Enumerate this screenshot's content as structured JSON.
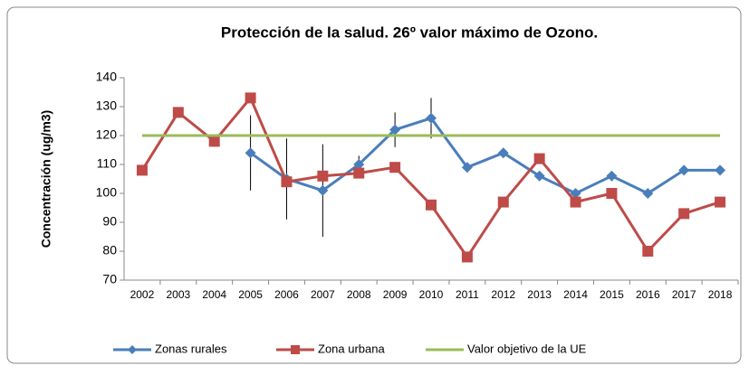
{
  "chart_data": {
    "type": "line",
    "title": "Protección de la salud. 26º valor máximo de Ozono.",
    "y_label": "Concentración (ug/m3)",
    "categories": [
      "2002",
      "2003",
      "2004",
      "2005",
      "2006",
      "2007",
      "2008",
      "2009",
      "2010",
      "2011",
      "2012",
      "2013",
      "2014",
      "2015",
      "2016",
      "2017",
      "2018"
    ],
    "series": [
      {
        "name": "Zonas  rurales",
        "color": "#4a7ebb",
        "marker": "diamond",
        "values": [
          null,
          null,
          null,
          114,
          105,
          101,
          110,
          122,
          126,
          109,
          114,
          106,
          100,
          106,
          100,
          108,
          108
        ],
        "errors": [
          null,
          null,
          null,
          13,
          14,
          16,
          3,
          6,
          7,
          null,
          null,
          null,
          null,
          null,
          null,
          null,
          null
        ]
      },
      {
        "name": "Zona urbana",
        "color": "#be4b48",
        "marker": "square",
        "values": [
          108,
          128,
          118,
          133,
          104,
          106,
          107,
          109,
          96,
          78,
          97,
          112,
          97,
          100,
          80,
          93,
          97
        ]
      },
      {
        "name": "Valor objetivo de la UE",
        "color": "#9bbb59",
        "marker": "none",
        "values": [
          120,
          120,
          120,
          120,
          120,
          120,
          120,
          120,
          120,
          120,
          120,
          120,
          120,
          120,
          120,
          120,
          120
        ]
      }
    ],
    "ylim": [
      70,
      140
    ],
    "yticks": [
      70,
      80,
      90,
      100,
      110,
      120,
      130,
      140
    ],
    "legend": "bottom"
  }
}
